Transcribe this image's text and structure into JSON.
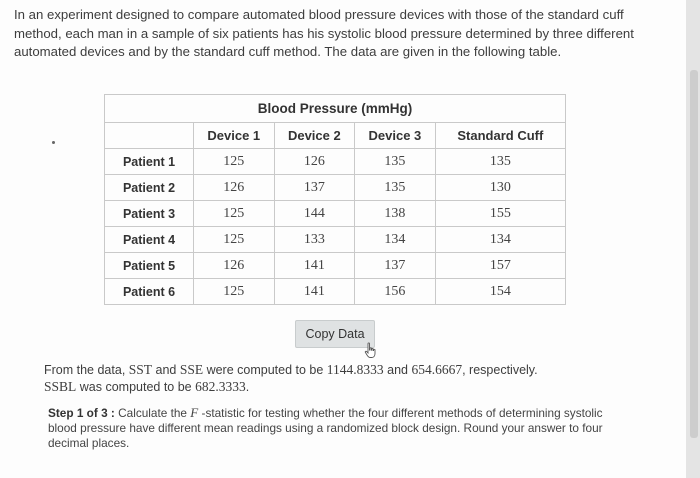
{
  "intro_text": "In an experiment designed to compare automated blood pressure devices with those of the standard cuff method, each man in a sample of six patients has his systolic blood pressure determined by three different automated devices and by the standard cuff method. The data are given in the following table.",
  "table": {
    "caption": "Blood Pressure (mmHg)",
    "columns": [
      "Device 1",
      "Device 2",
      "Device 3",
      "Standard Cuff"
    ],
    "rows": [
      {
        "label": "Patient 1",
        "values": [
          "125",
          "126",
          "135",
          "135"
        ]
      },
      {
        "label": "Patient 2",
        "values": [
          "126",
          "137",
          "135",
          "130"
        ]
      },
      {
        "label": "Patient 3",
        "values": [
          "125",
          "144",
          "138",
          "155"
        ]
      },
      {
        "label": "Patient 4",
        "values": [
          "125",
          "133",
          "134",
          "134"
        ]
      },
      {
        "label": "Patient 5",
        "values": [
          "126",
          "141",
          "137",
          "157"
        ]
      },
      {
        "label": "Patient 6",
        "values": [
          "125",
          "141",
          "156",
          "154"
        ]
      }
    ]
  },
  "copy_button_label": "Copy Data",
  "result": {
    "part1": "From the data, ",
    "sst": "SST",
    "part2": " and ",
    "sse": "SSE",
    "part3": " were computed to be ",
    "sst_value": "1144.8333",
    "part4": " and ",
    "sse_value": "654.6667",
    "part5": ", respectively.",
    "ssbl": "SSBL",
    "part6": " was computed to be ",
    "ssbl_value": "682.3333",
    "part7": "."
  },
  "step": {
    "label": "Step 1 of 3 :",
    "text_before": " Calculate the ",
    "f_symbol": "F",
    "text_after": " -statistic for testing whether the four different methods of determining systolic blood pressure have different mean readings using a randomized block design. Round your answer to four decimal places."
  }
}
